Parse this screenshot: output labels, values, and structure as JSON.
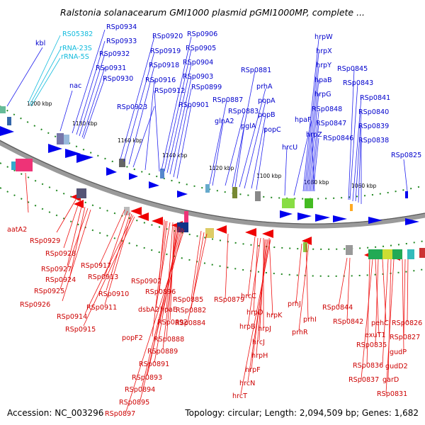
{
  "title": "Ralstonia solanacearum GMI1000 plasmid pGMI1000MP, complete ...",
  "footer": {
    "accession": "Accession: NC_003296",
    "stats": "Topology: circular; Length: 2,094,509 bp; Genes: 1,682"
  },
  "colors": {
    "plus": "#0000cc",
    "minus": "#cc0000",
    "rna": "#11bbdd",
    "backbone": "#777777"
  },
  "ticks": [
    "1200 kbp",
    "1180 kbp",
    "1160 kbp",
    "1140 kbp",
    "1120 kbp",
    "1100 kbp",
    "1080 kbp",
    "1060 kbp"
  ],
  "genes_plus": [
    "RSp0934",
    "RSp0933",
    "RSp0932",
    "RSp0931",
    "RSp0930",
    "RSp0920",
    "RSp0919",
    "RSp0918",
    "RSp0916",
    "RSp0912",
    "RSp0906",
    "RSp0905",
    "RSp0904",
    "RSp0903",
    "RSp0899",
    "RSp0901",
    "RSp0923",
    "RSp0887",
    "glnA2",
    "RSp0883",
    "pglA",
    "RSp0881",
    "prhA",
    "popA",
    "popB",
    "popC",
    "hrcU",
    "hpaF",
    "hrpW",
    "hrpX",
    "hrpY",
    "hpaB",
    "hrpG",
    "RSp0848",
    "RSp0847",
    "RSp0846",
    "hrpZ",
    "RSp0845",
    "RSp0843",
    "RSp0841",
    "RSp0840",
    "RSp0839",
    "RSp0838",
    "RSp0825",
    "kbl",
    "nac"
  ],
  "genes_rna": [
    "RS05382",
    "rRNA-23S",
    "rRNA-5S"
  ],
  "genes_minus": [
    "aatA2",
    "RSp0929",
    "RSp0928",
    "RSp0927",
    "RSp0924",
    "RSp0925",
    "RSp0926",
    "RSp0917",
    "RSp0913",
    "RSp0910",
    "RSp0911",
    "RSp0914",
    "RSp0915",
    "RSp0902",
    "RSp0896",
    "dsbA2",
    "hpaE",
    "RSp0892",
    "RSp0888",
    "RSp0889",
    "RSp0891",
    "RSp0893",
    "RSp0894",
    "RSp0895",
    "RSp0897",
    "popF2",
    "RSp0885",
    "RSp0882",
    "RSp0884",
    "RSp0879",
    "hrcC",
    "hrpD",
    "hrpK",
    "hrpB",
    "hrpJ",
    "hrcJ",
    "hrpH",
    "hrpF",
    "hrcN",
    "hrcT",
    "prhJ",
    "prhI",
    "prhR",
    "RSp0844",
    "RSp0842",
    "pehC",
    "RSp0826",
    "exuT1",
    "RSp0835",
    "RSp0827",
    "gudP",
    "RSp0836",
    "gudD2",
    "RSp0837",
    "garD",
    "RSp0831"
  ]
}
